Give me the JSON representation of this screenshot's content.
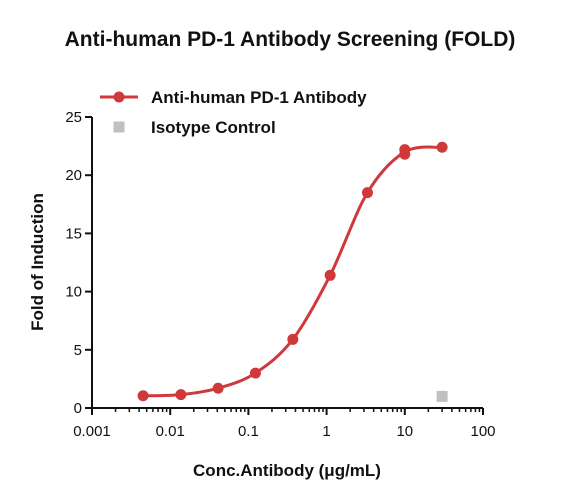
{
  "chart_data": {
    "type": "scatter",
    "title": "Anti-human PD-1 Antibody Screening (FOLD)",
    "xlabel": "Conc.Antibody (μg/mL)",
    "ylabel": "Fold of Induction",
    "x_scale": "log",
    "xlim": [
      0.001,
      100
    ],
    "ylim": [
      0,
      25
    ],
    "x_ticks": [
      0.001,
      0.01,
      0.1,
      1,
      10,
      100
    ],
    "x_tick_labels": [
      "0.001",
      "0.01",
      "0.1",
      "1",
      "10",
      "100"
    ],
    "y_ticks": [
      0,
      5,
      10,
      15,
      20,
      25
    ],
    "y_tick_labels": [
      "0",
      "5",
      "10",
      "15",
      "20",
      "25"
    ],
    "grid": false,
    "legend_position": "top-left",
    "series": [
      {
        "name": "Anti-human PD-1 Antibody",
        "color": "#d0393b",
        "marker": "circle",
        "fit_curve": true,
        "x": [
          0.0045,
          0.0137,
          0.041,
          0.123,
          0.37,
          1.11,
          3.33,
          10,
          10,
          30
        ],
        "y": [
          1.05,
          1.15,
          1.7,
          3.0,
          5.9,
          11.4,
          18.5,
          22.2,
          21.8,
          22.4
        ]
      },
      {
        "name": "Isotype Control",
        "color": "#c0c0c0",
        "marker": "square",
        "fit_curve": false,
        "x": [
          30
        ],
        "y": [
          1.0
        ]
      }
    ]
  }
}
